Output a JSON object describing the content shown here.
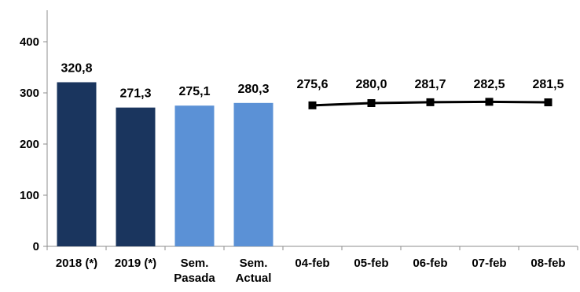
{
  "chart_data": {
    "type": "bar+line",
    "title": "",
    "xlabel": "",
    "ylabel": "",
    "ylim": [
      0,
      400
    ],
    "yticks": [
      0,
      100,
      200,
      300,
      400
    ],
    "grid": false,
    "legend": "none",
    "categories": [
      [
        "2018 (*)"
      ],
      [
        "2019 (*)"
      ],
      [
        "Sem.",
        "Pasada"
      ],
      [
        "Sem.",
        "Actual"
      ],
      [
        "04-feb"
      ],
      [
        "05-feb"
      ],
      [
        "06-feb"
      ],
      [
        "07-feb"
      ],
      [
        "08-feb"
      ]
    ],
    "bars": [
      {
        "category_index": 0,
        "value": 320.8,
        "label": "320,8",
        "color": "#1a355e"
      },
      {
        "category_index": 1,
        "value": 271.3,
        "label": "271,3",
        "color": "#1a355e"
      },
      {
        "category_index": 2,
        "value": 275.1,
        "label": "275,1",
        "color": "#5b91d6"
      },
      {
        "category_index": 3,
        "value": 280.3,
        "label": "280,3",
        "color": "#5b91d6"
      }
    ],
    "line": {
      "color": "#000000",
      "marker": "square",
      "points": [
        {
          "category_index": 4,
          "value": 275.6,
          "label": "275,6"
        },
        {
          "category_index": 5,
          "value": 280.0,
          "label": "280,0"
        },
        {
          "category_index": 6,
          "value": 281.7,
          "label": "281,7"
        },
        {
          "category_index": 7,
          "value": 282.5,
          "label": "282,5"
        },
        {
          "category_index": 8,
          "value": 281.5,
          "label": "281,5"
        }
      ]
    }
  }
}
